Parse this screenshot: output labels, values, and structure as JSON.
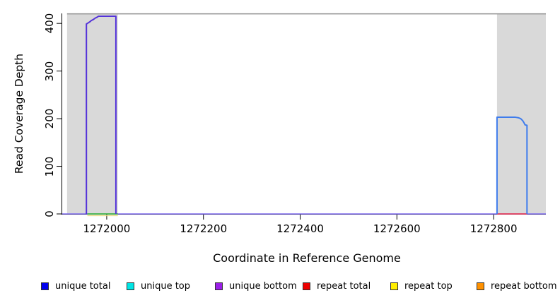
{
  "chart_data": {
    "type": "line",
    "title": "",
    "xlabel": "Coordinate in Reference Genome",
    "ylabel": "Read Coverage Depth",
    "xlim": [
      1271908,
      1272908
    ],
    "ylim": [
      0,
      421
    ],
    "x_ticks": [
      1272000,
      1272200,
      1272400,
      1272600,
      1272800
    ],
    "y_ticks": [
      0,
      100,
      200,
      300,
      400
    ],
    "grid": false,
    "plot_background": "#ffffff",
    "highlight_regions": [
      {
        "name": "left-gray-region",
        "x0": 1271918,
        "x1": 1272023,
        "color": "#d9d9d9"
      },
      {
        "name": "right-gray-region",
        "x0": 1272807,
        "x1": 1272908,
        "color": "#d9d9d9"
      }
    ],
    "top_line": {
      "x0": 1271918,
      "x1": 1272908,
      "y": 420,
      "color": "#8f8f8f"
    },
    "series": [
      {
        "name": "zero-baseline-unique",
        "color": "#7b68ee",
        "width": 1.5,
        "points": [
          [
            1271908,
            0
          ],
          [
            1272908,
            0
          ]
        ]
      },
      {
        "name": "repeat-top-zero-line",
        "color": "#e6d77a",
        "width": 1.2,
        "dy": 2.5,
        "points": [
          [
            1271960,
            0
          ],
          [
            1272023,
            0
          ]
        ]
      },
      {
        "name": "unique-top-zero-line",
        "color": "#44bb44",
        "width": 1.8,
        "points": [
          [
            1271960,
            0
          ],
          [
            1272023,
            0
          ]
        ]
      },
      {
        "name": "repeat-total-zero-line",
        "color": "#e8405a",
        "width": 1.8,
        "points": [
          [
            1272807,
            0
          ],
          [
            1272869,
            0
          ]
        ]
      },
      {
        "name": "unique-coverage-left-peak",
        "color": "#5433d9",
        "width": 2,
        "points": [
          [
            1271958,
            0
          ],
          [
            1271958,
            399
          ],
          [
            1271960,
            400
          ],
          [
            1271963,
            402
          ],
          [
            1271966,
            404
          ],
          [
            1271968,
            406
          ],
          [
            1271972,
            408
          ],
          [
            1271976,
            411
          ],
          [
            1271980,
            413
          ],
          [
            1271983,
            415
          ],
          [
            1272019,
            415
          ],
          [
            1272019,
            0
          ]
        ]
      },
      {
        "name": "coverage-right-peak",
        "color": "#3f7cec",
        "width": 2,
        "points": [
          [
            1272807,
            0
          ],
          [
            1272807,
            203
          ],
          [
            1272845,
            203
          ],
          [
            1272851,
            202
          ],
          [
            1272856,
            200
          ],
          [
            1272860,
            196
          ],
          [
            1272863,
            191
          ],
          [
            1272865,
            187
          ],
          [
            1272869,
            186
          ],
          [
            1272869,
            0
          ]
        ]
      }
    ],
    "legend": [
      {
        "label": "unique total",
        "color": "#0000ee"
      },
      {
        "label": "unique top",
        "color": "#00e5e5"
      },
      {
        "label": "unique bottom",
        "color": "#9b1fe8"
      },
      {
        "label": "repeat total",
        "color": "#ee0000"
      },
      {
        "label": "repeat top",
        "color": "#ffee00"
      },
      {
        "label": "repeat bottom",
        "color": "#ff9100"
      }
    ],
    "legend_position": "bottom"
  }
}
